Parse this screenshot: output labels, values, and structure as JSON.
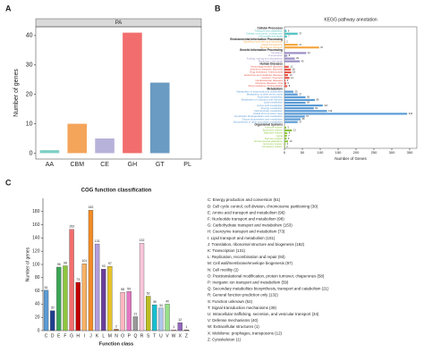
{
  "chart_data": [
    {
      "type": "bar",
      "label": "A",
      "facet": "PA",
      "ylabel": "Number of genes",
      "categories": [
        "AA",
        "CBM",
        "CE",
        "GH",
        "GT",
        "PL"
      ],
      "values": [
        1,
        10,
        5,
        41,
        24,
        0
      ],
      "colors": [
        "#7ecfc4",
        "#f4a55a",
        "#b7b2da",
        "#f26d6d",
        "#6a9bc3",
        "#a4cf6a"
      ],
      "ylim": [
        -2,
        43
      ],
      "yticks": [
        0,
        10,
        20,
        30,
        40
      ]
    },
    {
      "type": "barh",
      "label": "B",
      "title": "KEGG pathway annotation",
      "xlabel": "Number of Genes",
      "xlim": [
        0,
        370
      ],
      "xticks": [
        0,
        50,
        100,
        150,
        200,
        250,
        300,
        350
      ],
      "groups": [
        {
          "name": "Cellular Processes",
          "color": "#4dbfbf",
          "categories": [
            "Transport and catabolism",
            "Cellular community - prokaryotes",
            "Cell growth and death"
          ],
          "values": [
            6,
            37,
            7
          ]
        },
        {
          "name": "Environmental Information Processing",
          "color": "#f5a742",
          "categories": [
            "Signaling molecules and interaction",
            "Signal transduction",
            "Membrane transport"
          ],
          "values": [
            2,
            37,
            97
          ]
        },
        {
          "name": "Genetic Information Processing",
          "color": "#9b8ec4",
          "categories": [
            "Translation",
            "Transcription",
            "Folding, sorting and degradation",
            "Replication and repair"
          ],
          "values": [
            61,
            8,
            29,
            43
          ]
        },
        {
          "name": "Human Diseases",
          "color": "#e8584a",
          "categories": [
            "Neurodegenerative diseases",
            "Infectious diseases: Bacterial",
            "Drug resistance: Antimicrobial",
            "Endocrine and metabolic diseases",
            "Cancers: Overview",
            "Cardiovascular diseases",
            "Infectious diseases: Viral",
            "Drug resistance: Antineoplastic"
          ],
          "values": [
            12,
            18,
            19,
            10,
            14,
            3,
            5,
            8
          ]
        },
        {
          "name": "Metabolism",
          "color": "#5b9bd5",
          "categories": [
            "Metabolism of terpenoids and polyketides",
            "Metabolism of other amino acids",
            "Nucleotide metabolism",
            "Metabolism of cofactors and vitamins",
            "Lipid metabolism",
            "Amino acid metabolism",
            "Energy metabolism",
            "Carbohydrate metabolism",
            "Global and overview maps",
            "Xenobiotics biodegradation and metabolism",
            "Glycan biosynthesis and metabolism",
            "Biosynthesis of other secondary metabolites"
          ],
          "values": [
            25,
            37,
            59,
            85,
            59,
            107,
            82,
            119,
            343,
            57,
            45,
            37
          ]
        },
        {
          "name": "Organismal Systems",
          "color": "#8dc63f",
          "categories": [
            "Immune system",
            "Endocrine system",
            "Digestive system",
            "Aging",
            "Nervous system",
            "Environmental adaptation",
            "Excretory system",
            "Circulatory system"
          ],
          "values": [
            5,
            21,
            8,
            7,
            6,
            10,
            3,
            2
          ]
        }
      ]
    },
    {
      "type": "bar",
      "label": "C",
      "title": "COG function classification",
      "xlabel": "Function class",
      "ylabel": "Number of genes",
      "data_labels": true,
      "categories": [
        "C",
        "D",
        "E",
        "F",
        "G",
        "H",
        "I",
        "J",
        "K",
        "L",
        "M",
        "N",
        "O",
        "P",
        "Q",
        "R",
        "S",
        "T",
        "U",
        "V",
        "W",
        "X",
        "Z"
      ],
      "values": [
        61,
        30,
        96,
        98,
        153,
        73,
        101,
        182,
        131,
        93,
        97,
        2,
        58,
        59,
        21,
        132,
        52,
        39,
        34,
        40,
        1,
        12,
        1
      ],
      "colors": [
        "#5b9bd5",
        "#1f3f8f",
        "#3aa655",
        "#8dc63f",
        "#f26d6d",
        "#c00000",
        "#f7b267",
        "#f28c28",
        "#b39ddb",
        "#6a3d9a",
        "#e6c229",
        "#a0522d",
        "#ffb6c1",
        "#e377c2",
        "#999999",
        "#f7c6d9",
        "#bcbd22",
        "#17becf",
        "#aec7e8",
        "#98df8a",
        "#ff9896",
        "#9467bd",
        "#8c564b"
      ],
      "ylim": [
        0,
        200
      ],
      "yticks": [
        0,
        20,
        40,
        60,
        80,
        100,
        120,
        140,
        160,
        180
      ],
      "legend": [
        "C: Energy production and conversion  (61)",
        "D: Cell cycle control, cell division, chromosome partitioning  (30)",
        "E: Amino acid transport and metabolism  (96)",
        "F: Nucleotide transport and metabolism  (98)",
        "G: Carbohydrate transport and metabolism  (153)",
        "H: Coenzyme transport and metabolism  (73)",
        "I: Lipid transport and metabolism  (101)",
        "J: Translation, ribosomal structure and biogenesis  (182)",
        "K: Transcription  (131)",
        "L: Replication, recombination and repair  (93)",
        "M: Cell wall/membrane/envelope biogenesis  (97)",
        "N: Cell motility  (2)",
        "O: Posttranslational modification, protein turnover, chaperones  (58)",
        "P: Inorganic ion transport and metabolism  (59)",
        "Q: Secondary metabolites biosynthesis, transport and catabolism  (21)",
        "R: General function prediction only  (132)",
        "S: Function unknown  (52)",
        "T: Signal transduction mechanisms  (39)",
        "U: Intracellular trafficking, secretion, and vesicular transport  (34)",
        "V: Defense mechanisms  (40)",
        "W: Extracellular structures  (1)",
        "X: Mobilome: prophages, transposons  (12)",
        "Z: Cytoskeleton  (1)"
      ]
    }
  ]
}
